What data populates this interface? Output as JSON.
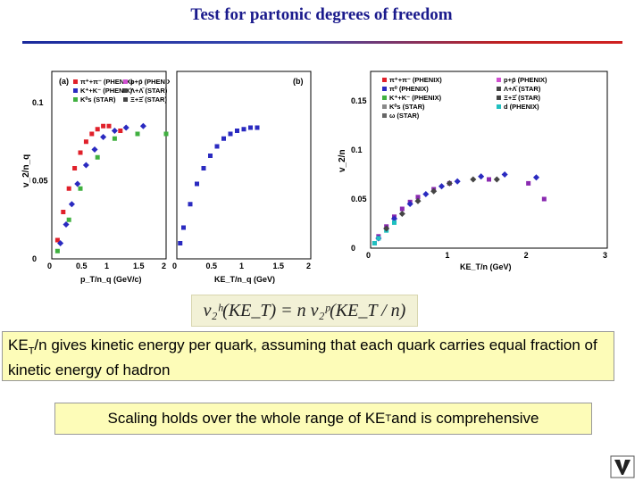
{
  "slide": {
    "title": "Test for partonic degrees of freedom",
    "note1_prefix": "KE",
    "note1_sub": "T",
    "note1_text": "/n gives kinetic energy per quark, assuming that each quark carries equal fraction of kinetic energy of  hadron",
    "note2_prefix": "Scaling holds over the whole range of KE",
    "note2_sub": "T",
    "note2_suffix": " and is comprehensive",
    "formula": "v₂ʰ(KE_T) = n v₂ᵖ(KE_T / n)"
  },
  "chart_data": [
    {
      "type": "scatter",
      "panel_label": "(a)",
      "xlabel": "p_T/n_q (GeV/c)",
      "ylabel": "v_2/n_q",
      "x_ticks": [
        "0",
        "0.5",
        "1",
        "1.5",
        "2"
      ],
      "y_ticks": [
        "0",
        "0.05",
        "0.1"
      ],
      "xlim": [
        0,
        2
      ],
      "ylim": [
        0,
        0.12
      ],
      "legend": [
        "π⁺+π⁻ (PHENIX)",
        "p+p̄ (PHENIX)",
        "K⁺+K⁻ (PHENIX)",
        "Λ+Λ̄ (STAR)",
        "K⁰s (STAR)",
        "Ξ+Ξ̄ (STAR)"
      ],
      "series": [
        {
          "name": "π⁺+π⁻ (PHENIX)",
          "color": "#e0202a",
          "x": [
            0.1,
            0.2,
            0.3,
            0.4,
            0.5,
            0.6,
            0.7,
            0.8,
            0.9,
            1.0,
            1.2,
            1.5
          ],
          "y": [
            0.012,
            0.03,
            0.045,
            0.058,
            0.068,
            0.075,
            0.08,
            0.083,
            0.085,
            0.085,
            0.082,
            0.08
          ]
        },
        {
          "name": "K⁺+K⁻ (PHENIX)",
          "color": "#2a2ac0",
          "x": [
            0.15,
            0.25,
            0.35,
            0.45,
            0.6,
            0.75,
            0.9,
            1.1,
            1.3,
            1.6
          ],
          "y": [
            0.01,
            0.022,
            0.035,
            0.048,
            0.06,
            0.07,
            0.078,
            0.082,
            0.084,
            0.085
          ]
        },
        {
          "name": "K⁰s (STAR)",
          "color": "#40b040",
          "x": [
            0.1,
            0.3,
            0.5,
            0.8,
            1.1,
            1.5,
            2.0
          ],
          "y": [
            0.005,
            0.025,
            0.045,
            0.065,
            0.077,
            0.08,
            0.08
          ]
        }
      ]
    },
    {
      "type": "scatter",
      "panel_label": "(b)",
      "xlabel": "KE_T/n_q (GeV)",
      "x_ticks": [
        "0",
        "0.5",
        "1",
        "1.5",
        "2"
      ],
      "xlim": [
        0,
        2
      ],
      "ylim": [
        0,
        0.12
      ],
      "series": [
        {
          "name": "PHENIX",
          "color": "#2a2ac0",
          "x": [
            0.05,
            0.1,
            0.2,
            0.3,
            0.4,
            0.5,
            0.6,
            0.7,
            0.8,
            0.9,
            1.0,
            1.1,
            1.2
          ],
          "y": [
            0.01,
            0.02,
            0.035,
            0.048,
            0.058,
            0.066,
            0.072,
            0.077,
            0.08,
            0.082,
            0.083,
            0.084,
            0.084
          ]
        }
      ]
    },
    {
      "type": "scatter",
      "xlabel": "KE_T/n (GeV)",
      "ylabel": "v_2/n",
      "x_ticks": [
        "0",
        "1",
        "2",
        "3"
      ],
      "y_ticks": [
        "0",
        "0.05",
        "0.1",
        "0.15"
      ],
      "xlim": [
        0,
        3
      ],
      "ylim": [
        0,
        0.18
      ],
      "legend": [
        "π⁺+π⁻ (PHENIX)",
        "p+p̄ (PHENIX)",
        "π⁰ (PHENIX)",
        "Λ+Λ̄ (STAR)",
        "K⁺+K⁻ (PHENIX)",
        "Ξ+Ξ̄ (STAR)",
        "K⁰s (STAR)",
        "d (PHENIX)",
        "ω (STAR)"
      ],
      "series": [
        {
          "name": "π⁺+π⁻ (PHENIX)",
          "color": "#8a2ab0",
          "x": [
            0.05,
            0.1,
            0.2,
            0.3,
            0.4,
            0.5,
            0.6,
            0.8,
            1.0,
            1.5,
            2.0,
            2.2
          ],
          "y": [
            0.005,
            0.012,
            0.022,
            0.032,
            0.04,
            0.047,
            0.052,
            0.06,
            0.066,
            0.07,
            0.066,
            0.05
          ]
        },
        {
          "name": "p+p̄ (PHENIX)",
          "color": "#2a2ac0",
          "x": [
            0.1,
            0.3,
            0.5,
            0.7,
            0.9,
            1.1,
            1.4,
            1.7,
            2.1
          ],
          "y": [
            0.01,
            0.03,
            0.045,
            0.055,
            0.063,
            0.068,
            0.073,
            0.075,
            0.072
          ]
        },
        {
          "name": "d (PHENIX)",
          "color": "#20c0c0",
          "x": [
            0.05,
            0.1,
            0.2,
            0.3
          ],
          "y": [
            0.005,
            0.01,
            0.018,
            0.026
          ]
        },
        {
          "name": "Λ+Λ̄ (STAR)",
          "color": "#444444",
          "x": [
            0.2,
            0.4,
            0.6,
            0.8,
            1.0,
            1.3,
            1.6
          ],
          "y": [
            0.02,
            0.035,
            0.048,
            0.058,
            0.066,
            0.07,
            0.07
          ]
        }
      ]
    }
  ]
}
